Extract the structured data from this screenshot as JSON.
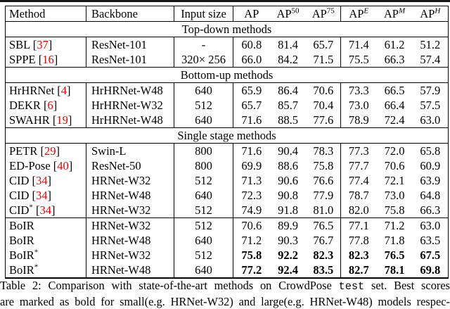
{
  "table": {
    "columns": [
      {
        "label": "Method",
        "sup": "",
        "italic": false
      },
      {
        "label": "Backbone",
        "sup": "",
        "italic": false
      },
      {
        "label": "Input size",
        "sup": "",
        "italic": false
      },
      {
        "label": "AP",
        "sup": "",
        "italic": false
      },
      {
        "label": "AP",
        "sup": "50",
        "italic": false
      },
      {
        "label": "AP",
        "sup": "75",
        "italic": false
      },
      {
        "label": "AP",
        "sup": "E",
        "italic": true
      },
      {
        "label": "AP",
        "sup": "M",
        "italic": true
      },
      {
        "label": "AP",
        "sup": "H",
        "italic": true
      }
    ],
    "sections": [
      {
        "label": "Top-down methods",
        "rows": [
          {
            "method": "SBL",
            "star": false,
            "cite": "37",
            "backbone": "ResNet-101",
            "input": "-",
            "bold": false,
            "rule_above": false,
            "values": [
              "60.8",
              "81.4",
              "65.7",
              "71.4",
              "61.2",
              "51.2"
            ]
          },
          {
            "method": "SPPE",
            "star": false,
            "cite": "16",
            "backbone": "ResNet-101",
            "input": "320× 256",
            "bold": false,
            "rule_above": false,
            "values": [
              "66.0",
              "84.2",
              "71.5",
              "75.5",
              "66.3",
              "57.4"
            ]
          }
        ]
      },
      {
        "label": "Bottom-up methods",
        "rows": [
          {
            "method": "HrHRNet",
            "star": false,
            "cite": "4",
            "backbone": "HrHRNet-W48",
            "input": "640",
            "bold": false,
            "rule_above": false,
            "values": [
              "65.9",
              "86.4",
              "70.6",
              "73.3",
              "66.5",
              "57.9"
            ]
          },
          {
            "method": "DEKR",
            "star": false,
            "cite": "6",
            "backbone": "HrHRNet-W32",
            "input": "512",
            "bold": false,
            "rule_above": false,
            "values": [
              "65.7",
              "85.7",
              "70.4",
              "73.0",
              "66.4",
              "57.5"
            ]
          },
          {
            "method": "SWAHR",
            "star": false,
            "cite": "19",
            "backbone": "HrHRNet-W48",
            "input": "640",
            "bold": false,
            "rule_above": false,
            "values": [
              "71.6",
              "88.5",
              "77.6",
              "78.9",
              "72.4",
              "63.0"
            ]
          }
        ]
      },
      {
        "label": "Single stage methods",
        "rows": [
          {
            "method": "PETR",
            "star": false,
            "cite": "29",
            "backbone": "Swin-L",
            "input": "800",
            "bold": false,
            "rule_above": false,
            "values": [
              "71.6",
              "90.4",
              "78.3",
              "77.3",
              "72.0",
              "65.8"
            ]
          },
          {
            "method": "ED-Pose",
            "star": false,
            "cite": "40",
            "backbone": "ResNet-50",
            "input": "800",
            "bold": false,
            "rule_above": false,
            "values": [
              "69.9",
              "88.6",
              "75.8",
              "77.7",
              "70.6",
              "60.9"
            ]
          },
          {
            "method": "CID",
            "star": false,
            "cite": "34",
            "backbone": "HRNet-W32",
            "input": "512",
            "bold": false,
            "rule_above": false,
            "values": [
              "71.3",
              "90.6",
              "76.6",
              "77.4",
              "72.1",
              "63.9"
            ]
          },
          {
            "method": "CID",
            "star": false,
            "cite": "34",
            "backbone": "HRNet-W48",
            "input": "640",
            "bold": false,
            "rule_above": false,
            "values": [
              "72.3",
              "90.8",
              "77.9",
              "78.7",
              "73.0",
              "64.8"
            ]
          },
          {
            "method": "CID",
            "star": true,
            "cite": "34",
            "backbone": "HRNet-W32",
            "input": "512",
            "bold": false,
            "rule_above": false,
            "values": [
              "74.9",
              "91.8",
              "81.0",
              "82.0",
              "75.8",
              "66.3"
            ]
          },
          {
            "method": "BoIR",
            "star": false,
            "cite": "",
            "backbone": "HRNet-W32",
            "input": "512",
            "bold": false,
            "rule_above": true,
            "values": [
              "70.6",
              "89.9",
              "76.5",
              "77.1",
              "71.2",
              "63.0"
            ]
          },
          {
            "method": "BoIR",
            "star": false,
            "cite": "",
            "backbone": "HRNet-W48",
            "input": "640",
            "bold": false,
            "rule_above": false,
            "values": [
              "71.2",
              "90.3",
              "76.7",
              "77.8",
              "71.8",
              "63.5"
            ]
          },
          {
            "method": "BoIR",
            "star": true,
            "cite": "",
            "backbone": "HRNet-W32",
            "input": "512",
            "bold": true,
            "rule_above": false,
            "values": [
              "75.8",
              "92.2",
              "82.3",
              "82.3",
              "76.5",
              "67.5"
            ]
          },
          {
            "method": "BoIR",
            "star": true,
            "cite": "",
            "backbone": "HRNet-W48",
            "input": "640",
            "bold": true,
            "rule_above": false,
            "values": [
              "77.2",
              "92.4",
              "83.5",
              "82.7",
              "78.1",
              "69.8"
            ]
          }
        ]
      }
    ]
  },
  "caption": {
    "line1_prefix": "Table 2:  Comparison with state-of-the-art methods on CrowdPose ",
    "line1_code": "test",
    "line1_suffix": " set.  Best scores",
    "line2": "are marked as bold for small(e.g. HRNet-W32) and large(e.g. HRNet-W48) models respec-"
  }
}
